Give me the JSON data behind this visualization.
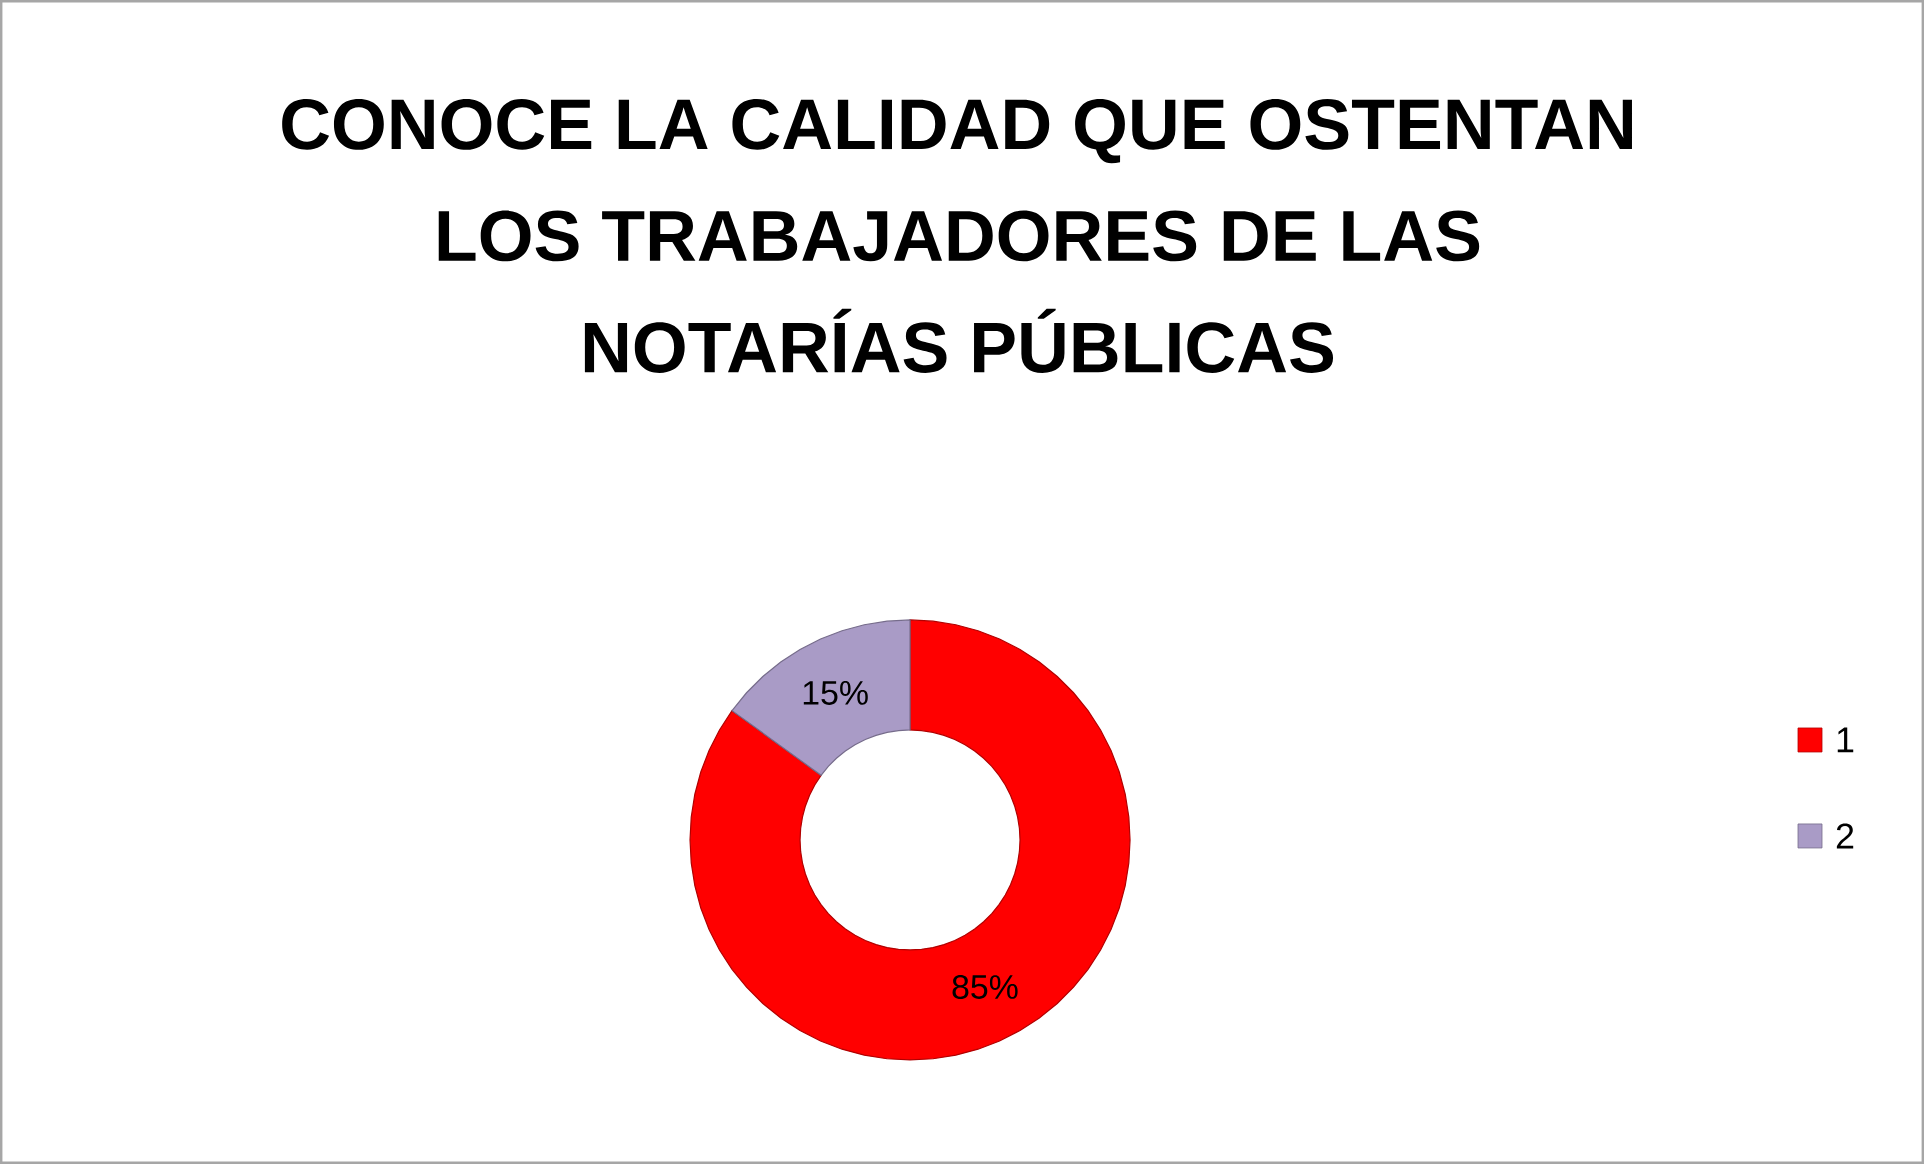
{
  "chart_data": {
    "type": "donut",
    "title": "CONOCE LA CALIDAD QUE OSTENTAN LOS TRABAJADORES DE LAS NOTARÍAS PÚBLICAS",
    "categories": [
      "1",
      "2"
    ],
    "values": [
      85,
      15
    ],
    "colors": [
      "#ff0000",
      "#a99bc6"
    ],
    "value_labels": [
      "85%",
      "15%"
    ],
    "legend": "right"
  }
}
